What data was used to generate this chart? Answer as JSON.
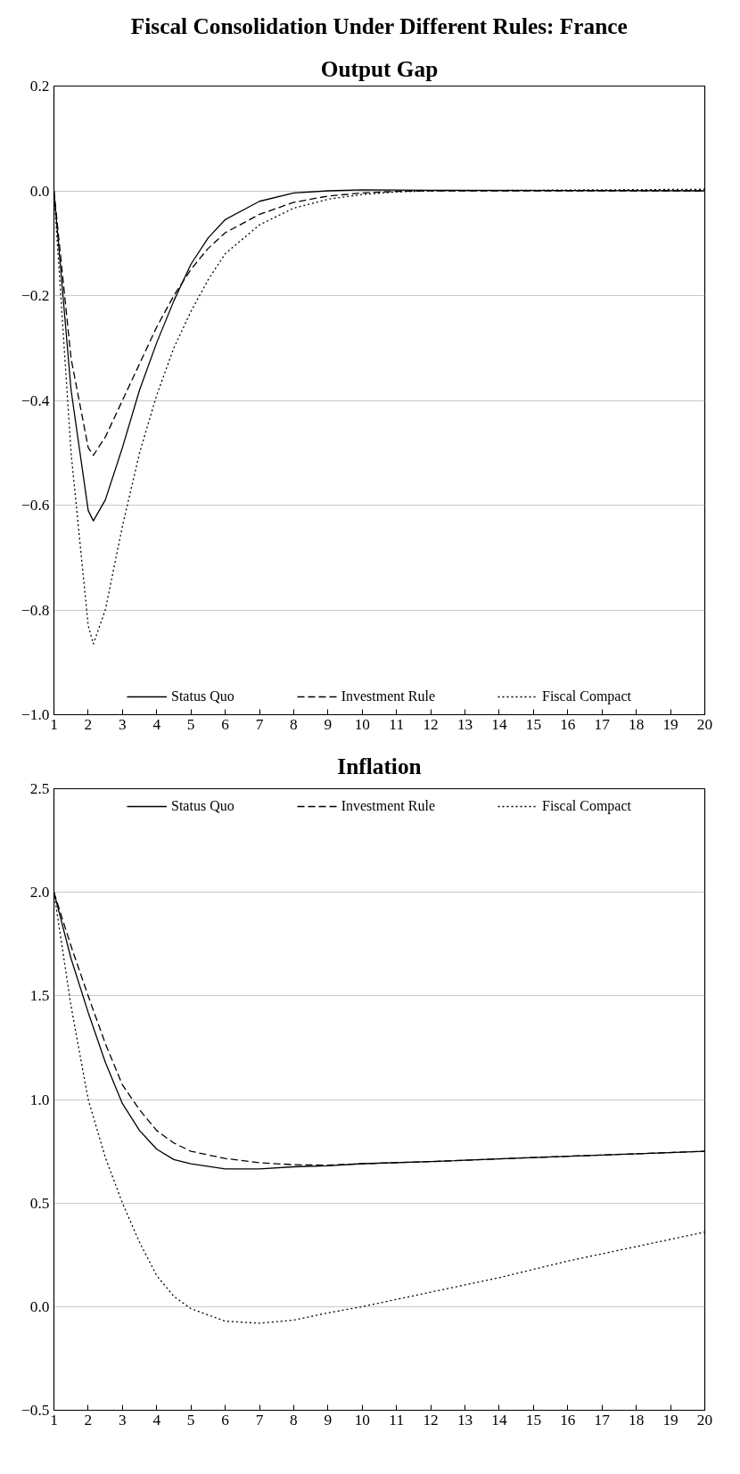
{
  "chart_data": [
    {
      "type": "line",
      "title": "Fiscal Consolidation Under Different Rules: France",
      "subtitle": "Output Gap",
      "xlim": [
        1,
        20
      ],
      "xticks": [
        1,
        2,
        3,
        4,
        5,
        6,
        7,
        8,
        9,
        10,
        11,
        12,
        13,
        14,
        15,
        16,
        17,
        18,
        19,
        20
      ],
      "ylim": [
        -1.0,
        0.2
      ],
      "yticks": [
        {
          "value": 0.2,
          "label": "0.2"
        },
        {
          "value": 0.0,
          "label": "0.0"
        },
        {
          "value": -0.2,
          "label": "−0.2"
        },
        {
          "value": -0.4,
          "label": "−0.4"
        },
        {
          "value": -0.6,
          "label": "−0.6"
        },
        {
          "value": -0.8,
          "label": "−0.8"
        },
        {
          "value": -1.0,
          "label": "−1.0"
        }
      ],
      "grid": "y",
      "legend": "bottom",
      "series": [
        {
          "name": "Status Quo",
          "color": "#000000",
          "line_style": "solid",
          "x": [
            1,
            1.5,
            2,
            2.15,
            2.5,
            3,
            3.5,
            4,
            4.5,
            5,
            5.5,
            6,
            7,
            8,
            9,
            10,
            12,
            20
          ],
          "values": [
            0,
            -0.38,
            -0.61,
            -0.63,
            -0.59,
            -0.49,
            -0.38,
            -0.29,
            -0.21,
            -0.14,
            -0.09,
            -0.055,
            -0.02,
            -0.004,
            0,
            0.002,
            0.001,
            0
          ]
        },
        {
          "name": "Investment Rule",
          "color": "#000000",
          "line_style": "dashed",
          "x": [
            1,
            1.5,
            2,
            2.15,
            2.5,
            3,
            3.5,
            4,
            4.5,
            5,
            5.5,
            6,
            7,
            8,
            9,
            10,
            11,
            12,
            20
          ],
          "values": [
            0,
            -0.32,
            -0.49,
            -0.505,
            -0.47,
            -0.4,
            -0.33,
            -0.26,
            -0.2,
            -0.15,
            -0.11,
            -0.08,
            -0.045,
            -0.022,
            -0.01,
            -0.004,
            -0.001,
            0,
            0
          ]
        },
        {
          "name": "Fiscal Compact",
          "color": "#000000",
          "line_style": "dotted",
          "x": [
            1,
            1.5,
            2,
            2.15,
            2.5,
            3,
            3.5,
            4,
            4.5,
            5,
            5.5,
            6,
            7,
            8,
            9,
            10,
            11,
            12,
            20
          ],
          "values": [
            0,
            -0.5,
            -0.83,
            -0.865,
            -0.8,
            -0.64,
            -0.5,
            -0.39,
            -0.3,
            -0.23,
            -0.17,
            -0.12,
            -0.065,
            -0.033,
            -0.016,
            -0.007,
            -0.002,
            0,
            0.003
          ]
        }
      ]
    },
    {
      "type": "line",
      "title": "Inflation",
      "xlim": [
        1,
        20
      ],
      "xticks": [
        1,
        2,
        3,
        4,
        5,
        6,
        7,
        8,
        9,
        10,
        11,
        12,
        13,
        14,
        15,
        16,
        17,
        18,
        19,
        20
      ],
      "ylim": [
        -0.5,
        2.5
      ],
      "yticks": [
        {
          "value": 2.5,
          "label": "2.5"
        },
        {
          "value": 2.0,
          "label": "2.0"
        },
        {
          "value": 1.5,
          "label": "1.5"
        },
        {
          "value": 1.0,
          "label": "1.0"
        },
        {
          "value": 0.5,
          "label": "0.5"
        },
        {
          "value": 0.0,
          "label": "0.0"
        },
        {
          "value": -0.5,
          "label": "−0.5"
        }
      ],
      "grid": "y",
      "legend": "top",
      "series": [
        {
          "name": "Status Quo",
          "color": "#000000",
          "line_style": "solid",
          "x": [
            1,
            1.5,
            2,
            2.5,
            3,
            3.5,
            4,
            4.5,
            5,
            6,
            7,
            8,
            9,
            10,
            12,
            15,
            20
          ],
          "values": [
            2.0,
            1.68,
            1.42,
            1.18,
            0.98,
            0.85,
            0.76,
            0.71,
            0.69,
            0.665,
            0.665,
            0.675,
            0.68,
            0.69,
            0.7,
            0.72,
            0.75
          ]
        },
        {
          "name": "Investment Rule",
          "color": "#000000",
          "line_style": "dashed",
          "x": [
            1,
            1.5,
            2,
            2.5,
            3,
            3.5,
            4,
            4.5,
            5,
            6,
            7,
            8,
            9,
            10,
            12,
            15,
            20
          ],
          "values": [
            2.0,
            1.74,
            1.5,
            1.27,
            1.07,
            0.95,
            0.85,
            0.79,
            0.75,
            0.715,
            0.695,
            0.685,
            0.683,
            0.69,
            0.7,
            0.72,
            0.75
          ]
        },
        {
          "name": "Fiscal Compact",
          "color": "#000000",
          "line_style": "dotted",
          "x": [
            1,
            1.5,
            2,
            2.5,
            3,
            3.5,
            4,
            4.5,
            5,
            6,
            7,
            8,
            9,
            10,
            12,
            14,
            16,
            18,
            20
          ],
          "values": [
            2.0,
            1.45,
            1.0,
            0.72,
            0.5,
            0.31,
            0.15,
            0.05,
            -0.01,
            -0.07,
            -0.08,
            -0.065,
            -0.03,
            0.0,
            0.07,
            0.14,
            0.22,
            0.29,
            0.36
          ]
        }
      ]
    }
  ]
}
